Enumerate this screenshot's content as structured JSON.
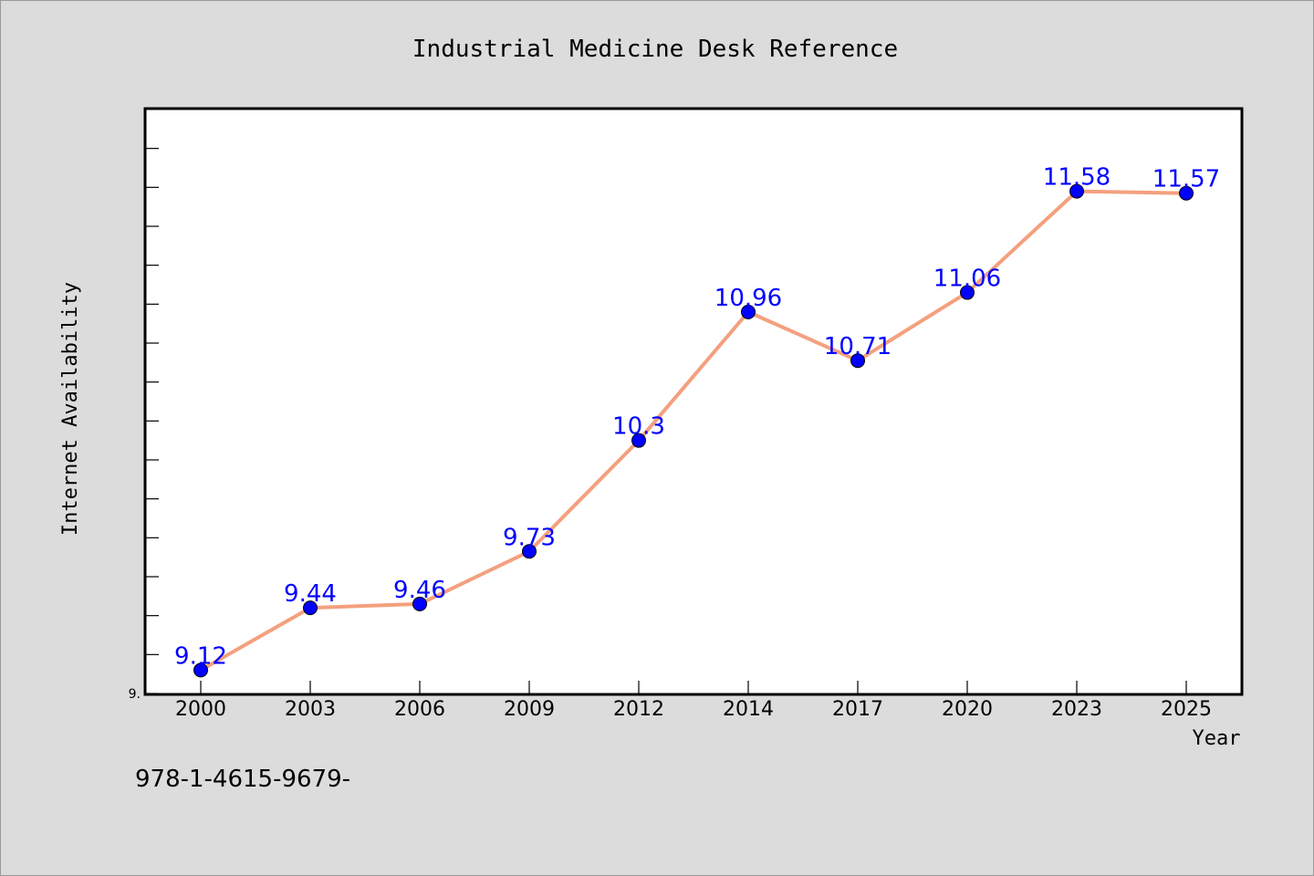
{
  "chart_data": {
    "type": "line",
    "title": "Industrial Medicine Desk Reference",
    "xlabel": "Year",
    "ylabel": "Internet Availability",
    "categories": [
      "2000",
      "2003",
      "2006",
      "2009",
      "2012",
      "2014",
      "2017",
      "2020",
      "2023",
      "2025"
    ],
    "series": [
      {
        "values": [
          9.12,
          9.44,
          9.46,
          9.73,
          10.3,
          10.96,
          10.71,
          11.06,
          11.58,
          11.57
        ],
        "labels": [
          "9.12",
          "9.44",
          "9.46",
          "9.73",
          "10.3",
          "10.96",
          "10.71",
          "11.06",
          "11.58",
          "11.57"
        ]
      }
    ],
    "ylim": [
      9.0,
      12.0
    ],
    "y_tick_labels": [
      "9."
    ],
    "grid": false,
    "colors": {
      "line": "#f4a07e",
      "marker": "#0000ff",
      "label": "#0000ff"
    }
  },
  "footer": {
    "text": "978-1-4615-9679-"
  }
}
